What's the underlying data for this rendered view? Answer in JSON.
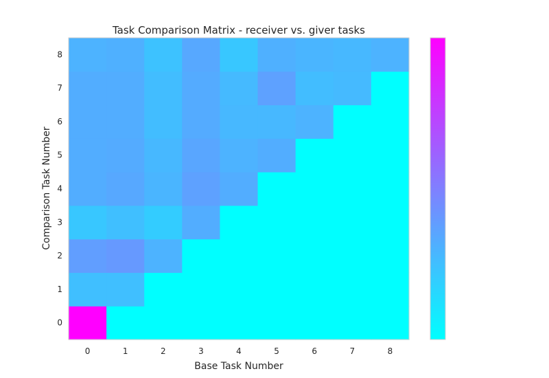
{
  "chart_data": {
    "type": "heatmap",
    "title": "Task Comparison Matrix - receiver vs. giver tasks",
    "xlabel": "Base Task Number",
    "ylabel": "Comparison Task Number",
    "x_categories": [
      "0",
      "1",
      "2",
      "3",
      "4",
      "5",
      "6",
      "7",
      "8"
    ],
    "y_categories": [
      "0",
      "1",
      "2",
      "3",
      "4",
      "5",
      "6",
      "7",
      "8"
    ],
    "colormap": "cool",
    "colormap_endpoints": [
      "#00ffff",
      "#ff00ff"
    ],
    "vmin": 0,
    "vmax": 1,
    "colorbar_tick_labels": false,
    "grid": false,
    "rows": [
      [
        1.0,
        0.0,
        0.0,
        0.0,
        0.0,
        0.0,
        0.0,
        0.0,
        0.0
      ],
      [
        0.25,
        0.25,
        0.0,
        0.0,
        0.0,
        0.0,
        0.0,
        0.0,
        0.0
      ],
      [
        0.38,
        0.4,
        0.3,
        0.0,
        0.0,
        0.0,
        0.0,
        0.0,
        0.0
      ],
      [
        0.22,
        0.25,
        0.2,
        0.32,
        0.0,
        0.0,
        0.0,
        0.0,
        0.0
      ],
      [
        0.32,
        0.34,
        0.29,
        0.37,
        0.32,
        0.0,
        0.0,
        0.0,
        0.0
      ],
      [
        0.32,
        0.33,
        0.28,
        0.35,
        0.3,
        0.32,
        0.0,
        0.0,
        0.0
      ],
      [
        0.32,
        0.32,
        0.26,
        0.33,
        0.28,
        0.28,
        0.3,
        0.0,
        0.0
      ],
      [
        0.32,
        0.32,
        0.26,
        0.33,
        0.27,
        0.37,
        0.26,
        0.27,
        0.0
      ],
      [
        0.3,
        0.31,
        0.24,
        0.34,
        0.22,
        0.31,
        0.29,
        0.28,
        0.3
      ]
    ]
  }
}
